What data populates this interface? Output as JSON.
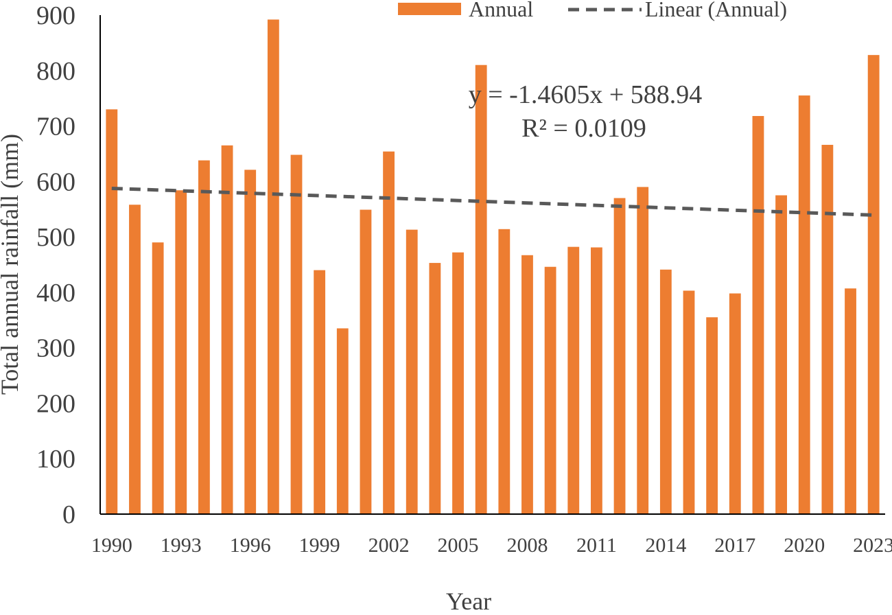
{
  "chart_data": {
    "type": "bar",
    "title": "",
    "xlabel": "Year",
    "ylabel": "Total annual rainfall (mm)",
    "ylim": [
      0,
      900
    ],
    "y_ticks": [
      "0",
      "100",
      "200",
      "300",
      "400",
      "500",
      "600",
      "700",
      "800",
      "900"
    ],
    "x_tick_labels": [
      "1990",
      "1993",
      "1996",
      "1999",
      "2002",
      "2005",
      "2008",
      "2011",
      "2014",
      "2017",
      "2020",
      "2023"
    ],
    "categories": [
      "1990",
      "1991",
      "1992",
      "1993",
      "1994",
      "1995",
      "1996",
      "1997",
      "1998",
      "1999",
      "2000",
      "2001",
      "2002",
      "2003",
      "2004",
      "2005",
      "2006",
      "2007",
      "2008",
      "2009",
      "2010",
      "2011",
      "2012",
      "2013",
      "2014",
      "2015",
      "2016",
      "2017",
      "2018",
      "2019",
      "2020",
      "2021",
      "2022",
      "2023"
    ],
    "series": [
      {
        "name": "Annual",
        "color": "#ED7D31",
        "values": [
          730,
          558,
          490,
          584,
          638,
          665,
          621,
          892,
          648,
          440,
          335,
          549,
          654,
          513,
          453,
          472,
          810,
          514,
          467,
          446,
          482,
          481,
          570,
          590,
          441,
          403,
          355,
          398,
          718,
          575,
          755,
          666,
          407,
          828
        ]
      }
    ],
    "trendline": {
      "name": "Linear (Annual)",
      "color": "#595959",
      "slope": -1.4605,
      "intercept": 588.94,
      "equation": "y = -1.4605x + 588.94",
      "r_squared": "R² = 0.0109"
    },
    "legend": {
      "placement": "top",
      "entries": [
        "Annual",
        "Linear (Annual)"
      ]
    },
    "grid": false
  }
}
